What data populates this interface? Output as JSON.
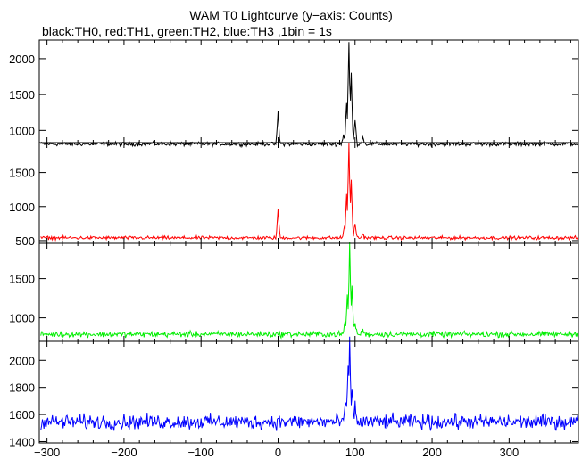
{
  "chart_data": {
    "type": "line",
    "title": "WAM T0 Lightcurve (y−axis: Counts)",
    "subtitle": "black:TH0, red:TH1, green:TH2, blue:TH3 ,1bin = 1s",
    "xlabel": "",
    "ylabel": "",
    "xlim": [
      -310,
      390
    ],
    "x_ticks": [
      -300,
      -200,
      -100,
      0,
      100,
      200,
      300
    ],
    "x_tick_labels": [
      "−300",
      "−200",
      "−100",
      "0",
      "100",
      "200",
      "300"
    ],
    "grid": false,
    "panels": [
      {
        "series": "TH0",
        "color": "#000000",
        "ylim": [
          830,
          2260
        ],
        "y_ticks": [
          1000,
          1500,
          2000
        ],
        "y_tick_labels": [
          "1000",
          "1500",
          "2000"
        ],
        "baseline": 810,
        "noise": 22,
        "features": [
          {
            "x": 0,
            "value": 1250
          },
          {
            "x": 85,
            "value": 950
          },
          {
            "x": 89,
            "value": 1400
          },
          {
            "x": 92,
            "value": 2230
          },
          {
            "x": 95,
            "value": 1800
          },
          {
            "x": 100,
            "value": 1150
          },
          {
            "x": 110,
            "value": 920
          }
        ]
      },
      {
        "series": "TH1",
        "color": "#ff0000",
        "ylim": [
          460,
          1940
        ],
        "y_ticks": [
          500,
          1000,
          1500
        ],
        "y_tick_labels": [
          "500",
          "1000",
          "1500"
        ],
        "baseline": 540,
        "noise": 20,
        "features": [
          {
            "x": 0,
            "value": 960
          },
          {
            "x": 86,
            "value": 700
          },
          {
            "x": 89,
            "value": 1200
          },
          {
            "x": 92,
            "value": 1920
          },
          {
            "x": 95,
            "value": 1400
          },
          {
            "x": 100,
            "value": 760
          },
          {
            "x": 110,
            "value": 600
          }
        ]
      },
      {
        "series": "TH2",
        "color": "#00ee00",
        "ylim": [
          700,
          1950
        ],
        "y_ticks": [
          1000,
          1500
        ],
        "y_tick_labels": [
          "1000",
          "1500"
        ],
        "baseline": 790,
        "noise": 30,
        "features": [
          {
            "x": 87,
            "value": 950
          },
          {
            "x": 90,
            "value": 1300
          },
          {
            "x": 93,
            "value": 1930
          },
          {
            "x": 96,
            "value": 1400
          },
          {
            "x": 100,
            "value": 950
          },
          {
            "x": 110,
            "value": 850
          }
        ]
      },
      {
        "series": "TH3",
        "color": "#0000ff",
        "ylim": [
          1390,
          2140
        ],
        "y_ticks": [
          1400,
          1600,
          1800,
          2000
        ],
        "y_tick_labels": [
          "1400",
          "1600",
          "1800",
          "2000"
        ],
        "baseline": 1545,
        "noise": 45,
        "features": [
          {
            "x": 88,
            "value": 1700
          },
          {
            "x": 91,
            "value": 1950
          },
          {
            "x": 93,
            "value": 2110
          },
          {
            "x": 96,
            "value": 1800
          },
          {
            "x": 100,
            "value": 1650
          }
        ]
      }
    ]
  }
}
